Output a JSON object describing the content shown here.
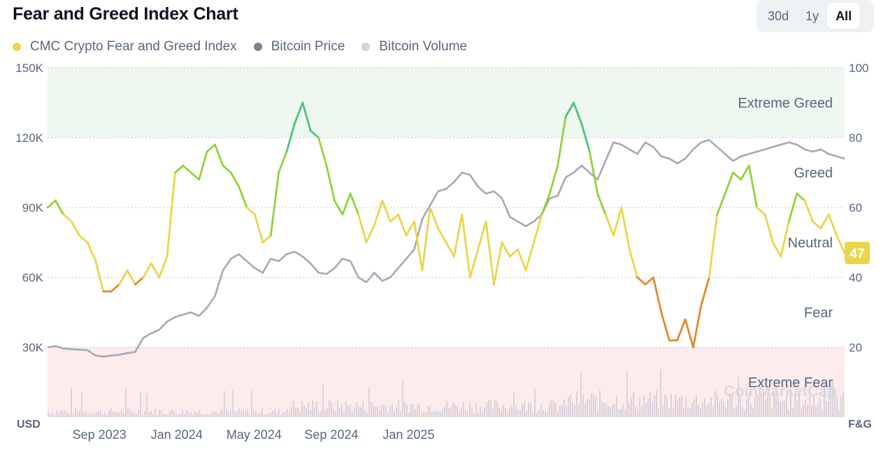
{
  "header": {
    "title": "Fear and Greed Index Chart"
  },
  "tabs": [
    {
      "label": "30d",
      "active": false
    },
    {
      "label": "1y",
      "active": false
    },
    {
      "label": "All",
      "active": true
    }
  ],
  "legend": [
    {
      "label": "CMC Crypto Fear and Greed Index",
      "color": "#f0d447"
    },
    {
      "label": "Bitcoin Price",
      "color": "#7c8293"
    },
    {
      "label": "Bitcoin Volume",
      "color": "#cfd4df"
    }
  ],
  "watermark": "CoinMarketCap",
  "chart_data": {
    "type": "line",
    "title": "Fear and Greed Index Chart",
    "left_axis": {
      "label": "USD",
      "ticks": [
        "150K",
        "120K",
        "90K",
        "60K",
        "30K"
      ],
      "values": [
        150000,
        120000,
        90000,
        60000,
        30000
      ],
      "range": [
        0,
        150000
      ]
    },
    "right_axis": {
      "label": "F&G",
      "ticks": [
        "100",
        "80",
        "60",
        "40",
        "20"
      ],
      "values": [
        100,
        80,
        60,
        40,
        20
      ],
      "range": [
        0,
        100
      ]
    },
    "x_ticks": [
      "Sep 2023",
      "Jan 2024",
      "May 2024",
      "Sep 2024",
      "Jan 2025"
    ],
    "x_tick_positions": [
      0.065,
      0.162,
      0.259,
      0.356,
      0.453
    ],
    "zones": [
      {
        "label": "Extreme Greed",
        "from": 80,
        "to": 100,
        "color": "#eef8f1"
      },
      {
        "label": "Greed",
        "from": 60,
        "to": 80,
        "color": "none"
      },
      {
        "label": "Neutral",
        "from": 40,
        "to": 60,
        "color": "none"
      },
      {
        "label": "Fear",
        "from": 20,
        "to": 40,
        "color": "none"
      },
      {
        "label": "Extreme Fear",
        "from": 0,
        "to": 20,
        "color": "#fcecec"
      }
    ],
    "grid": true,
    "current_value": 47,
    "series": [
      {
        "name": "CMC Crypto Fear and Greed Index",
        "axis": "right",
        "x": [
          0,
          0.01,
          0.02,
          0.03,
          0.04,
          0.05,
          0.06,
          0.07,
          0.08,
          0.09,
          0.1,
          0.11,
          0.12,
          0.13,
          0.14,
          0.15,
          0.16,
          0.17,
          0.18,
          0.19,
          0.2,
          0.21,
          0.22,
          0.23,
          0.24,
          0.25,
          0.26,
          0.27,
          0.28,
          0.29,
          0.3,
          0.31,
          0.32,
          0.33,
          0.34,
          0.35,
          0.36,
          0.37,
          0.38,
          0.39,
          0.4,
          0.41,
          0.42,
          0.43,
          0.44,
          0.45,
          0.46,
          0.47,
          0.48,
          0.49,
          0.5,
          0.51,
          0.52,
          0.53,
          0.54,
          0.55,
          0.56,
          0.57,
          0.58,
          0.59,
          0.6,
          0.61,
          0.62,
          0.63,
          0.64,
          0.65,
          0.66,
          0.67,
          0.68,
          0.69,
          0.7,
          0.71,
          0.72,
          0.73,
          0.74,
          0.75,
          0.76,
          0.77,
          0.78,
          0.79,
          0.8,
          0.81,
          0.82,
          0.83,
          0.84,
          0.85,
          0.86,
          0.87,
          0.88,
          0.89,
          0.9,
          0.91,
          0.92,
          0.93,
          0.94,
          0.95,
          0.96,
          0.97,
          0.98,
          0.99,
          1.0
        ],
        "values": [
          60,
          62,
          58,
          56,
          52,
          50,
          45,
          36,
          36,
          38,
          42,
          38,
          40,
          44,
          40,
          46,
          70,
          72,
          70,
          68,
          76,
          78,
          72,
          70,
          66,
          60,
          58,
          50,
          52,
          70,
          76,
          84,
          90,
          82,
          80,
          72,
          62,
          58,
          64,
          58,
          50,
          55,
          62,
          56,
          58,
          52,
          56,
          42,
          60,
          54,
          50,
          46,
          58,
          40,
          48,
          56,
          38,
          50,
          46,
          48,
          42,
          50,
          58,
          64,
          72,
          86,
          90,
          84,
          76,
          64,
          58,
          52,
          60,
          48,
          40,
          38,
          40,
          30,
          22,
          22,
          28,
          20,
          32,
          40,
          58,
          64,
          70,
          68,
          72,
          60,
          58,
          50,
          46,
          56,
          64,
          62,
          56,
          54,
          58,
          52,
          47
        ]
      },
      {
        "name": "Bitcoin Price",
        "axis": "left",
        "x": [
          0,
          0.01,
          0.02,
          0.03,
          0.04,
          0.05,
          0.06,
          0.07,
          0.08,
          0.09,
          0.1,
          0.11,
          0.12,
          0.13,
          0.14,
          0.15,
          0.16,
          0.17,
          0.18,
          0.19,
          0.2,
          0.21,
          0.22,
          0.23,
          0.24,
          0.25,
          0.26,
          0.27,
          0.28,
          0.29,
          0.3,
          0.31,
          0.32,
          0.33,
          0.34,
          0.35,
          0.36,
          0.37,
          0.38,
          0.39,
          0.4,
          0.41,
          0.42,
          0.43,
          0.44,
          0.45,
          0.46,
          0.47,
          0.48,
          0.49,
          0.5,
          0.51,
          0.52,
          0.53,
          0.54,
          0.55,
          0.56,
          0.57,
          0.58,
          0.59,
          0.6,
          0.61,
          0.62,
          0.63,
          0.64,
          0.65,
          0.66,
          0.67,
          0.68,
          0.69,
          0.7,
          0.71,
          0.72,
          0.73,
          0.74,
          0.75,
          0.76,
          0.77,
          0.78,
          0.79,
          0.8,
          0.81,
          0.82,
          0.83,
          0.84,
          0.85,
          0.86,
          0.87,
          0.88,
          0.89,
          0.9,
          0.91,
          0.92,
          0.93,
          0.94,
          0.95,
          0.96,
          0.97,
          0.98,
          0.99,
          1.0
        ],
        "values": [
          30000,
          30500,
          29500,
          29200,
          29000,
          28800,
          26500,
          26000,
          26500,
          26800,
          27500,
          28000,
          34000,
          36000,
          37500,
          41000,
          43000,
          44000,
          45000,
          43500,
          47000,
          52000,
          63000,
          68000,
          70000,
          67000,
          64000,
          62000,
          68000,
          67000,
          70000,
          71000,
          69000,
          66000,
          62000,
          61500,
          64000,
          68000,
          67000,
          60000,
          58000,
          62000,
          58500,
          60000,
          64000,
          68000,
          72000,
          85000,
          91000,
          97000,
          98000,
          101000,
          105000,
          104000,
          99000,
          96000,
          97000,
          94000,
          86000,
          84000,
          82000,
          84000,
          87000,
          94000,
          95000,
          103000,
          105000,
          108000,
          105000,
          102000,
          110000,
          118000,
          117000,
          115000,
          113000,
          118000,
          116000,
          112000,
          111000,
          109000,
          111000,
          115000,
          118000,
          119000,
          116000,
          113000,
          110000,
          112000,
          113000,
          114000,
          115000,
          116000,
          117000,
          118000,
          117000,
          115000,
          114000,
          115000,
          113000,
          112000,
          111000
        ]
      },
      {
        "name": "Bitcoin Volume",
        "axis": "left"
      }
    ]
  }
}
